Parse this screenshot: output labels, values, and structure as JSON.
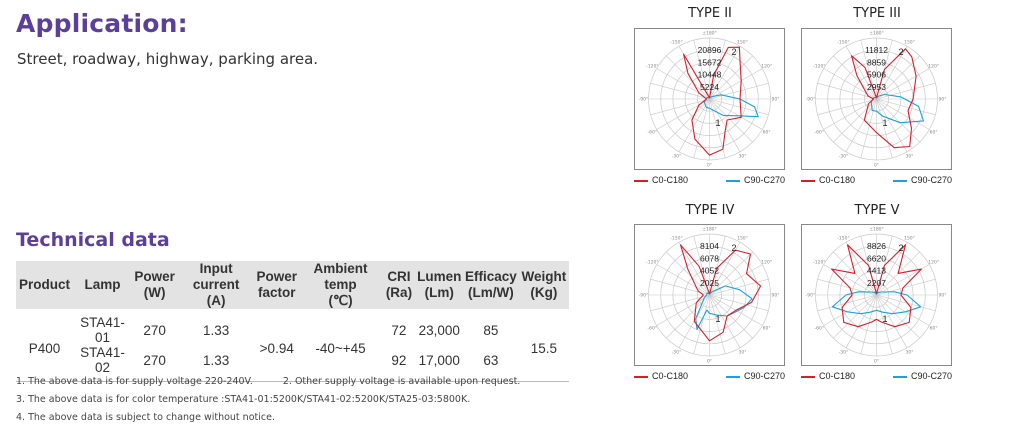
{
  "application": {
    "title": "Application:",
    "text": "Street, roadway, highway, parking area."
  },
  "technical": {
    "title": "Technical data",
    "headers": [
      [
        "Product"
      ],
      [
        "Lamp"
      ],
      [
        "Power",
        "(W)"
      ],
      [
        "Input current",
        "(A)"
      ],
      [
        "Power",
        "factor"
      ],
      [
        "Ambient temp",
        "(℃)"
      ],
      [
        "CRI",
        "(Ra)"
      ],
      [
        "Lumen",
        "(Lm)"
      ],
      [
        "Efficacy",
        "(Lm/W)"
      ],
      [
        "Weight",
        "(Kg)"
      ]
    ],
    "product": "P400",
    "power_factor": ">0.94",
    "ambient_temp": "-40~+45",
    "weight": "15.5",
    "rows": [
      {
        "lamp": "STA41-01",
        "power": "270",
        "current": "1.33",
        "cri": "72",
        "lumen": "23,000",
        "efficacy": "85"
      },
      {
        "lamp": "STA41-02",
        "power": "270",
        "current": "1.33",
        "cri": "92",
        "lumen": "17,000",
        "efficacy": "63"
      }
    ]
  },
  "notes": {
    "n1": "1. The above data is for supply voltage 220-240V.",
    "n2": "2. Other supply voltage is available upon request.",
    "n3": "3. The above data is for color temperature :STA41-01:5200K/STA41-02:5200K/STA25-03:5800K.",
    "n4": "4. The above data is subject to change without notice."
  },
  "colors": {
    "accent": "#5b3f9a",
    "c0": "#d81e2b",
    "c90": "#1ea0dc",
    "grid": "#c8c8c8"
  },
  "chart_data": [
    {
      "type": "polar",
      "title": "TYPE II",
      "radial_ticks": [
        "20896",
        "15672",
        "10448",
        "5224"
      ],
      "angle_labels": [
        "±180°",
        "-150°",
        "150°",
        "-120°",
        "120°",
        "-90°",
        "90°",
        "-60°",
        "60°",
        "-30°",
        "30°",
        "0°"
      ],
      "series": [
        {
          "name": "C0-C180",
          "label": "2"
        },
        {
          "name": "C90-C270",
          "label": "1"
        }
      ]
    },
    {
      "type": "polar",
      "title": "TYPE III",
      "radial_ticks": [
        "11812",
        "8859",
        "5906",
        "2953"
      ],
      "angle_labels": [
        "±180°",
        "-150°",
        "150°",
        "-120°",
        "120°",
        "-90°",
        "90°",
        "-60°",
        "60°",
        "-30°",
        "30°",
        "0°"
      ],
      "series": [
        {
          "name": "C0-C180",
          "label": "2"
        },
        {
          "name": "C90-C270",
          "label": "1"
        }
      ]
    },
    {
      "type": "polar",
      "title": "TYPE IV",
      "radial_ticks": [
        "8104",
        "6078",
        "4052",
        "2025"
      ],
      "angle_labels": [
        "±180°",
        "-150°",
        "150°",
        "-120°",
        "120°",
        "-90°",
        "90°",
        "-60°",
        "60°",
        "-30°",
        "30°",
        "0°"
      ],
      "series": [
        {
          "name": "C0-C180",
          "label": "2"
        },
        {
          "name": "C90-C270",
          "label": "1"
        }
      ]
    },
    {
      "type": "polar",
      "title": "TYPE V",
      "radial_ticks": [
        "8826",
        "6620",
        "4413",
        "2207"
      ],
      "angle_labels": [
        "±180°",
        "-150°",
        "150°",
        "-120°",
        "120°",
        "-90°",
        "90°",
        "-60°",
        "60°",
        "-30°",
        "30°",
        "0°"
      ],
      "series": [
        {
          "name": "C0-C180",
          "label": "2"
        },
        {
          "name": "C90-C270",
          "label": "1"
        }
      ]
    }
  ]
}
